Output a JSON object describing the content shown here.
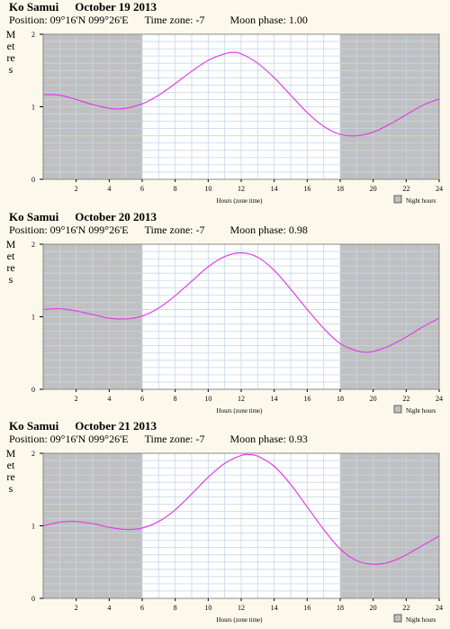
{
  "charts": [
    {
      "location": "Ko Samui",
      "date": "October 19 2013",
      "position": "Position: 09°16'N 099°26'E",
      "timezone": "Time zone: -7",
      "moon_phase": "Moon phase: 1.00"
    },
    {
      "location": "Ko Samui",
      "date": "October 20 2013",
      "position": "Position: 09°16'N 099°26'E",
      "timezone": "Time zone: -7",
      "moon_phase": "Moon phase: 0.98"
    },
    {
      "location": "Ko Samui",
      "date": "October 21 2013",
      "position": "Position: 09°16'N 099°26'E",
      "timezone": "Time zone: -7",
      "moon_phase": "Moon phase: 0.93"
    }
  ],
  "colors": {
    "background": "#fdf8ec",
    "night": "#c0c0c0",
    "day": "#ffffff",
    "grid": "#c6d6ec",
    "curve": "#e040e0"
  },
  "chart_data": [
    {
      "type": "line",
      "title": "Ko Samui    October 19 2013",
      "xlabel": "Hours (zone time)",
      "ylabel": "Metres",
      "xlim": [
        0,
        24
      ],
      "ylim": [
        0,
        2
      ],
      "xticks": [
        2,
        4,
        6,
        8,
        10,
        12,
        14,
        16,
        18,
        20,
        22,
        24
      ],
      "yticks": [
        0,
        1,
        2
      ],
      "night_hours": [
        [
          0,
          6
        ],
        [
          18,
          24
        ]
      ],
      "legend": "Night hours",
      "legend_position": "bottom-right",
      "grid": true,
      "series": [
        {
          "x": [
            0,
            1,
            2,
            3,
            4,
            4.5,
            5,
            6,
            7,
            8,
            9,
            10,
            11,
            11.5,
            12,
            13,
            14,
            15,
            16,
            17,
            18,
            19,
            20,
            21,
            22,
            23,
            24
          ],
          "y": [
            1.17,
            1.16,
            1.1,
            1.03,
            0.98,
            0.97,
            0.98,
            1.04,
            1.16,
            1.32,
            1.49,
            1.64,
            1.73,
            1.75,
            1.73,
            1.6,
            1.4,
            1.16,
            0.92,
            0.73,
            0.62,
            0.6,
            0.65,
            0.76,
            0.89,
            1.02,
            1.11
          ]
        }
      ]
    },
    {
      "type": "line",
      "title": "Ko Samui    October 20 2013",
      "xlabel": "Hours (zone time)",
      "ylabel": "Metres",
      "xlim": [
        0,
        24
      ],
      "ylim": [
        0,
        2
      ],
      "xticks": [
        2,
        4,
        6,
        8,
        10,
        12,
        14,
        16,
        18,
        20,
        22,
        24
      ],
      "yticks": [
        0,
        1,
        2
      ],
      "night_hours": [
        [
          0,
          6
        ],
        [
          18,
          24
        ]
      ],
      "legend": "Night hours",
      "legend_position": "bottom-right",
      "grid": true,
      "series": [
        {
          "x": [
            0,
            1,
            2,
            3,
            4,
            5,
            6,
            7,
            8,
            9,
            10,
            11,
            12,
            13,
            14,
            15,
            16,
            17,
            18,
            19,
            19.5,
            20,
            21,
            22,
            23,
            24
          ],
          "y": [
            1.1,
            1.11,
            1.08,
            1.03,
            0.98,
            0.97,
            1.01,
            1.12,
            1.29,
            1.49,
            1.69,
            1.83,
            1.88,
            1.82,
            1.64,
            1.38,
            1.1,
            0.84,
            0.63,
            0.53,
            0.51,
            0.52,
            0.6,
            0.72,
            0.86,
            0.98
          ]
        }
      ]
    },
    {
      "type": "line",
      "title": "Ko Samui    October 21 2013",
      "xlabel": "Hours (zone time)",
      "ylabel": "Metres",
      "xlim": [
        0,
        24
      ],
      "ylim": [
        0,
        2
      ],
      "xticks": [
        2,
        4,
        6,
        8,
        10,
        12,
        14,
        16,
        18,
        20,
        22,
        24
      ],
      "yticks": [
        0,
        1,
        2
      ],
      "night_hours": [
        [
          0,
          6
        ],
        [
          18,
          24
        ]
      ],
      "legend": "Night hours",
      "legend_position": "bottom-right",
      "grid": true,
      "series": [
        {
          "x": [
            0,
            1,
            1.5,
            2,
            3,
            4,
            5,
            6,
            7,
            8,
            9,
            10,
            11,
            12,
            12.5,
            13,
            14,
            15,
            16,
            17,
            18,
            19,
            20,
            21,
            22,
            23,
            24
          ],
          "y": [
            1.0,
            1.05,
            1.06,
            1.06,
            1.03,
            0.98,
            0.95,
            0.97,
            1.06,
            1.22,
            1.44,
            1.67,
            1.86,
            1.97,
            1.98,
            1.96,
            1.82,
            1.57,
            1.26,
            0.95,
            0.68,
            0.52,
            0.47,
            0.5,
            0.6,
            0.73,
            0.86
          ]
        }
      ]
    }
  ]
}
